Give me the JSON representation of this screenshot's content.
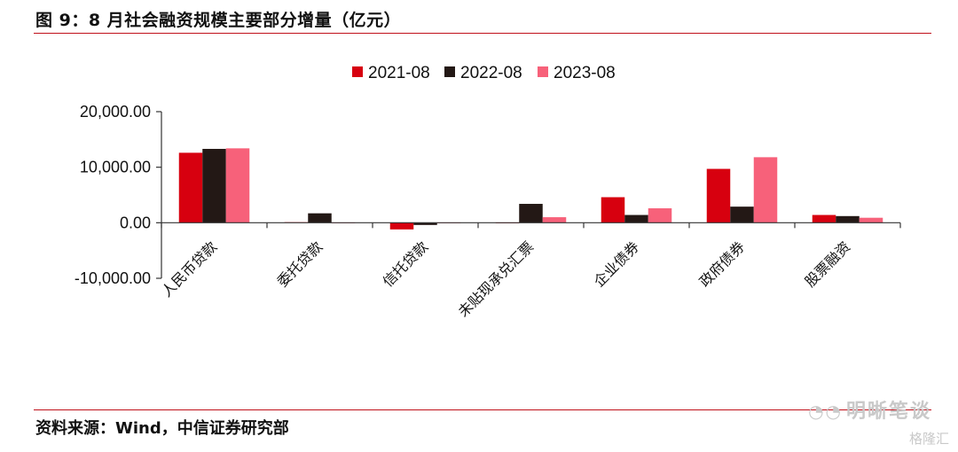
{
  "figure": {
    "title": "图 9：8 月社会融资规模主要部分增量（亿元）",
    "source": "资料来源：Wind，中信证券研究部"
  },
  "watermark": {
    "text": "明晰笔谈",
    "icon": "wechat-icon",
    "sub_text": "格隆汇"
  },
  "chart_data": {
    "type": "bar",
    "title": "",
    "xlabel": "",
    "ylabel": "",
    "ylim": [
      -10000,
      20000
    ],
    "yticks": [
      20000,
      10000,
      0,
      -10000
    ],
    "ytick_labels": [
      "20,000.00",
      "10,000.00",
      "0.00",
      "-10,000.00"
    ],
    "legend_position": "top-center",
    "grid": false,
    "categories": [
      "人民币贷款",
      "委托贷款",
      "信托贷款",
      "未贴现承兑汇票",
      "企业债券",
      "政府债券",
      "股票融资"
    ],
    "series": [
      {
        "name": "2021-08",
        "color": "#d7000f",
        "values": [
          12600,
          100,
          -1200,
          0,
          4600,
          9700,
          1400
        ]
      },
      {
        "name": "2022-08",
        "color": "#231815",
        "values": [
          13300,
          1700,
          -400,
          3400,
          1400,
          2900,
          1200
        ]
      },
      {
        "name": "2023-08",
        "color": "#f7617a",
        "values": [
          13400,
          -50,
          0,
          1000,
          2600,
          11800,
          900
        ]
      }
    ]
  }
}
